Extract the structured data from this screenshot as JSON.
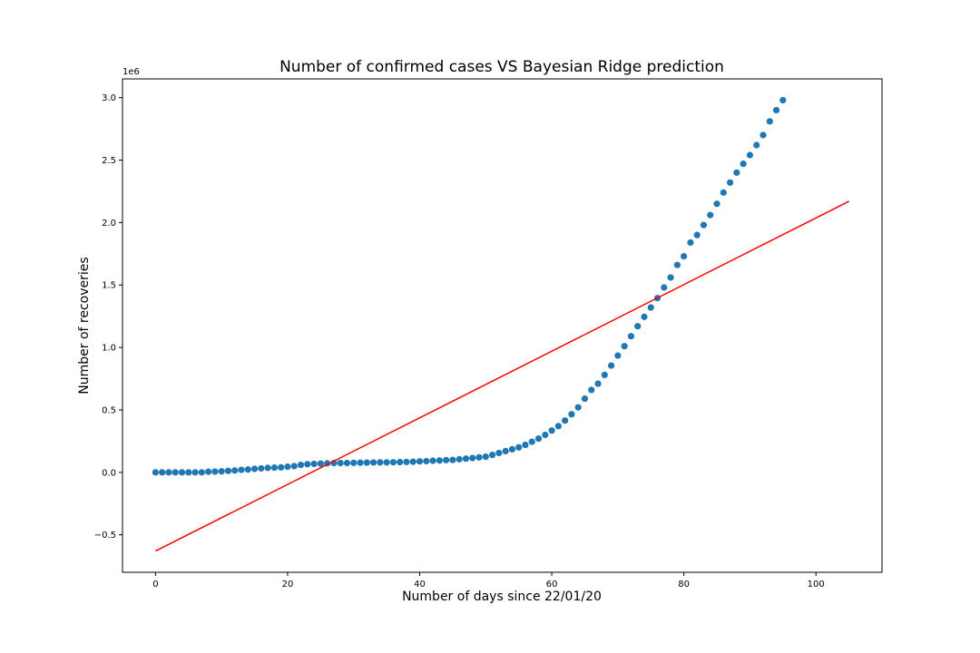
{
  "chart_data": {
    "type": "scatter",
    "title": "Number of confirmed cases VS Bayesian Ridge prediction",
    "xlabel": "Number of days since 22/01/20",
    "ylabel": "Number of recoveries",
    "y_offset_label": "1e6",
    "xlim": [
      -5,
      110
    ],
    "ylim": [
      -0.8,
      3.15
    ],
    "x_ticks": [
      0,
      20,
      40,
      60,
      80,
      100
    ],
    "x_tick_labels": [
      "0",
      "20",
      "40",
      "60",
      "80",
      "100"
    ],
    "y_ticks": [
      -0.5,
      0.0,
      0.5,
      1.0,
      1.5,
      2.0,
      2.5,
      3.0
    ],
    "y_tick_labels": [
      "−0.5",
      "0.0",
      "0.5",
      "1.0",
      "1.5",
      "2.0",
      "2.5",
      "3.0"
    ],
    "grid": false,
    "colors": {
      "points": "#1f77b4",
      "prediction": "#ff0000"
    },
    "series": [
      {
        "kind": "scatter",
        "x": [
          0,
          1,
          2,
          3,
          4,
          5,
          6,
          7,
          8,
          9,
          10,
          11,
          12,
          13,
          14,
          15,
          16,
          17,
          18,
          19,
          20,
          21,
          22,
          23,
          24,
          25,
          26,
          27,
          28,
          29,
          30,
          31,
          32,
          33,
          34,
          35,
          36,
          37,
          38,
          39,
          40,
          41,
          42,
          43,
          44,
          45,
          46,
          47,
          48,
          49,
          50,
          51,
          52,
          53,
          54,
          55,
          56,
          57,
          58,
          59,
          60,
          61,
          62,
          63,
          64,
          65,
          66,
          67,
          68,
          69,
          70,
          71,
          72,
          73,
          74,
          75,
          76,
          77,
          78,
          79,
          80,
          81,
          82,
          83,
          84,
          85,
          86,
          87,
          88,
          89,
          90,
          91,
          92,
          93,
          94,
          95
        ],
        "y": [
          0.0,
          0.0,
          0.0,
          0.0,
          0.0,
          0.0,
          0.0,
          0.0,
          0.005,
          0.006,
          0.008,
          0.012,
          0.015,
          0.02,
          0.023,
          0.028,
          0.032,
          0.036,
          0.038,
          0.04,
          0.045,
          0.05,
          0.06,
          0.065,
          0.068,
          0.07,
          0.072,
          0.074,
          0.075,
          0.075,
          0.076,
          0.077,
          0.078,
          0.079,
          0.08,
          0.08,
          0.081,
          0.082,
          0.083,
          0.085,
          0.088,
          0.09,
          0.093,
          0.095,
          0.098,
          0.1,
          0.105,
          0.11,
          0.115,
          0.12,
          0.125,
          0.14,
          0.155,
          0.17,
          0.185,
          0.2,
          0.22,
          0.245,
          0.27,
          0.3,
          0.335,
          0.37,
          0.415,
          0.465,
          0.52,
          0.59,
          0.66,
          0.71,
          0.78,
          0.855,
          0.935,
          1.01,
          1.09,
          1.17,
          1.245,
          1.32,
          1.395,
          1.48,
          1.56,
          1.66,
          1.73,
          1.84,
          1.9,
          1.98,
          2.06,
          2.15,
          2.24,
          2.32,
          2.4,
          2.47,
          2.54,
          2.62,
          2.7,
          2.81,
          2.9,
          2.98
        ]
      },
      {
        "kind": "line",
        "x": [
          0,
          105
        ],
        "y": [
          -0.63,
          2.17
        ]
      }
    ]
  }
}
